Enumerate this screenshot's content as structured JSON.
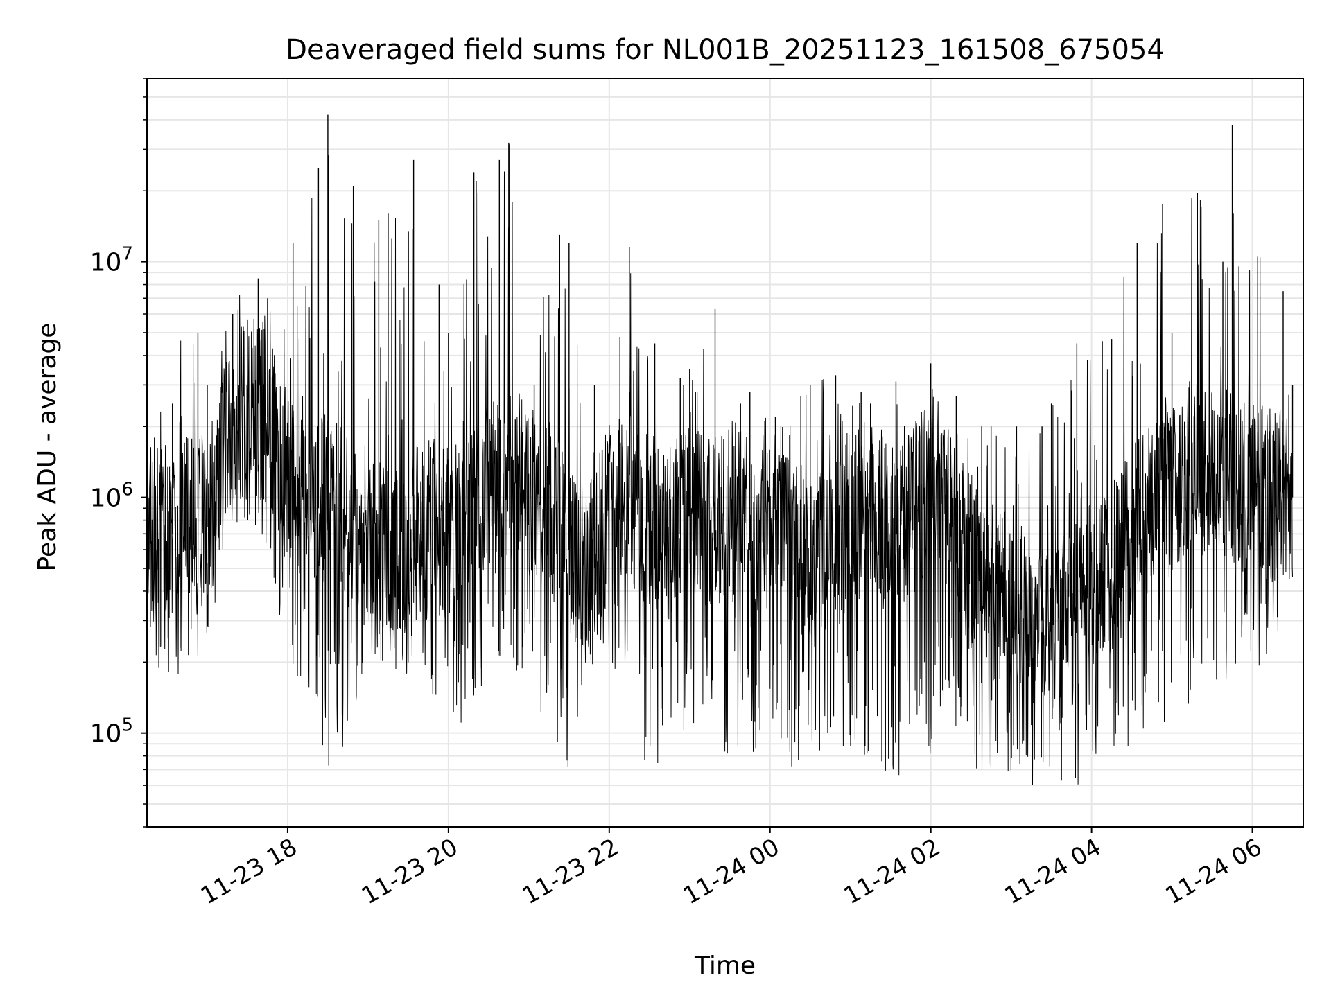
{
  "chart_data": {
    "type": "line",
    "title": "Deaveraged field sums for NL001B_20251123_161508_675054",
    "xlabel": "Time",
    "ylabel": "Peak ADU - average",
    "xlim": [
      "2025-11-23 16:15",
      "2025-11-24 06:38"
    ],
    "ylim": [
      40000,
      60000000
    ],
    "yscale": "log",
    "grid": true,
    "line_color": "#000000",
    "grid_color": "#e6e6e6",
    "x_ticks": [
      {
        "t": "2025-11-23 18:00",
        "label": "11-23 18"
      },
      {
        "t": "2025-11-23 20:00",
        "label": "11-23 20"
      },
      {
        "t": "2025-11-23 22:00",
        "label": "11-23 22"
      },
      {
        "t": "2025-11-24 00:00",
        "label": "11-24 00"
      },
      {
        "t": "2025-11-24 02:00",
        "label": "11-24 02"
      },
      {
        "t": "2025-11-24 04:00",
        "label": "11-24 04"
      },
      {
        "t": "2025-11-24 06:00",
        "label": "11-24 06"
      }
    ],
    "y_ticks": [
      {
        "value": 100000,
        "base": "10",
        "exp": "5"
      },
      {
        "value": 1000000,
        "base": "10",
        "exp": "6"
      },
      {
        "value": 10000000,
        "base": "10",
        "exp": "7"
      }
    ],
    "series": [
      {
        "x": [
          "2025-11-23 16:15",
          "2025-11-23 16:30",
          "2025-11-23 16:45",
          "2025-11-23 17:00",
          "2025-11-23 17:15",
          "2025-11-23 17:30",
          "2025-11-23 17:45",
          "2025-11-23 18:00",
          "2025-11-23 18:15",
          "2025-11-23 18:30",
          "2025-11-23 18:45",
          "2025-11-23 19:00",
          "2025-11-23 19:15",
          "2025-11-23 19:30",
          "2025-11-23 19:45",
          "2025-11-23 20:00",
          "2025-11-23 20:15",
          "2025-11-23 20:30",
          "2025-11-23 20:45",
          "2025-11-23 21:00",
          "2025-11-23 21:15",
          "2025-11-23 21:30",
          "2025-11-23 21:45",
          "2025-11-23 22:00",
          "2025-11-23 22:15",
          "2025-11-23 22:30",
          "2025-11-23 22:45",
          "2025-11-23 23:00",
          "2025-11-23 23:15",
          "2025-11-23 23:30",
          "2025-11-23 23:45",
          "2025-11-24 00:00",
          "2025-11-24 00:15",
          "2025-11-24 00:30",
          "2025-11-24 00:45",
          "2025-11-24 01:00",
          "2025-11-24 01:15",
          "2025-11-24 01:30",
          "2025-11-24 01:45",
          "2025-11-24 02:00",
          "2025-11-24 02:15",
          "2025-11-24 02:30",
          "2025-11-24 02:45",
          "2025-11-24 03:00",
          "2025-11-24 03:15",
          "2025-11-24 03:30",
          "2025-11-24 03:45",
          "2025-11-24 04:00",
          "2025-11-24 04:15",
          "2025-11-24 04:30",
          "2025-11-24 04:45",
          "2025-11-24 05:00",
          "2025-11-24 05:15",
          "2025-11-24 05:30",
          "2025-11-24 05:45",
          "2025-11-24 06:00",
          "2025-11-24 06:15",
          "2025-11-24 06:30"
        ],
        "y": [
          800000,
          700000,
          900000,
          750000,
          2000000,
          2500000,
          2200000,
          1200000,
          900000,
          1000000,
          800000,
          700000,
          600000,
          650000,
          800000,
          700000,
          1000000,
          1200000,
          1300000,
          1100000,
          900000,
          600000,
          500000,
          900000,
          1000000,
          800000,
          700000,
          900000,
          800000,
          750000,
          600000,
          800000,
          700000,
          500000,
          600000,
          800000,
          900000,
          700000,
          800000,
          1200000,
          900000,
          500000,
          400000,
          350000,
          300000,
          300000,
          350000,
          400000,
          500000,
          700000,
          900000,
          1100000,
          1400000,
          1300000,
          1200000,
          1100000,
          1000000,
          1000000
        ],
        "low": [
          200000,
          180000,
          170000,
          250000,
          600000,
          800000,
          600000,
          200000,
          150000,
          70000,
          90000,
          180000,
          180000,
          170000,
          150000,
          110000,
          100000,
          200000,
          200000,
          110000,
          80000,
          70000,
          180000,
          200000,
          150000,
          60000,
          80000,
          100000,
          80000,
          70000,
          80000,
          100000,
          70000,
          70000,
          100000,
          80000,
          80000,
          65000,
          62000,
          70000,
          120000,
          65000,
          60000,
          58000,
          55000,
          58000,
          60000,
          55000,
          60000,
          90000,
          100000,
          100000,
          100000,
          100000,
          200000,
          180000,
          180000,
          500000
        ],
        "high": [
          2000000,
          2500000,
          5000000,
          3000000,
          6000000,
          8500000,
          7000000,
          12000000,
          25000000,
          42000000,
          21000000,
          15000000,
          16000000,
          27000000,
          8000000,
          5000000,
          24000000,
          27000000,
          32000000,
          3000000,
          13000000,
          12000000,
          3000000,
          4800000,
          11500000,
          4500000,
          3200000,
          3500000,
          6300000,
          2500000,
          2800000,
          2200000,
          2700000,
          3000000,
          3300000,
          2800000,
          2500000,
          3100000,
          2300000,
          3700000,
          2700000,
          2000000,
          2000000,
          2000000,
          2000000,
          2500000,
          4500000,
          4600000,
          4700000,
          12000000,
          17500000,
          5000000,
          19500000,
          10000000,
          38000000,
          10500000,
          7500000,
          3000000
        ]
      }
    ]
  }
}
